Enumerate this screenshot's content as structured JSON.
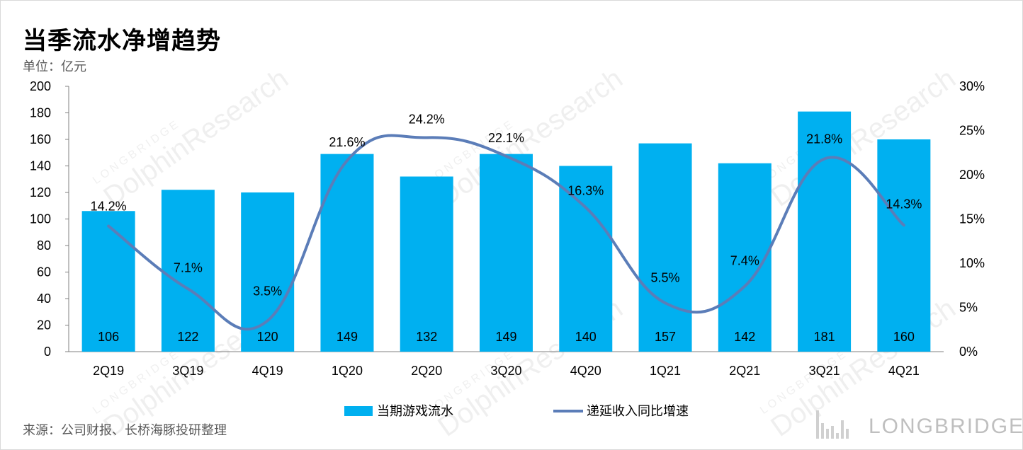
{
  "title": "当季流水净增趋势",
  "unit_label": "单位：亿元",
  "source": "来源：公司财报、长桥海豚投研整理",
  "watermark": {
    "brand": "LONGBRIDGE",
    "text": "DolphinResearch"
  },
  "colors": {
    "bar": "#00b0f0",
    "line": "#5b7db8",
    "axis": "#808080"
  },
  "chart_data": {
    "type": "bar",
    "categories": [
      "2Q19",
      "3Q19",
      "4Q19",
      "1Q20",
      "2Q20",
      "3Q20",
      "4Q20",
      "1Q21",
      "2Q21",
      "3Q21",
      "4Q21"
    ],
    "series": [
      {
        "name": "当期游戏流水",
        "type": "bar",
        "axis": "left",
        "values": [
          106,
          122,
          120,
          149,
          132,
          149,
          140,
          157,
          142,
          181,
          160
        ],
        "labels": [
          "106",
          "122",
          "120",
          "149",
          "132",
          "149",
          "140",
          "157",
          "142",
          "181",
          "160"
        ]
      },
      {
        "name": "递延收入同比增速",
        "type": "line",
        "axis": "right",
        "smooth": true,
        "values": [
          14.2,
          7.1,
          3.5,
          21.6,
          24.2,
          22.1,
          16.3,
          5.5,
          7.4,
          21.8,
          14.3
        ],
        "labels": [
          "14.2%",
          "7.1%",
          "3.5%",
          "21.6%",
          "24.2%",
          "22.1%",
          "16.3%",
          "5.5%",
          "7.4%",
          "21.8%",
          "14.3%"
        ]
      }
    ],
    "y_left": {
      "min": 0,
      "max": 200,
      "ticks": [
        "0",
        "20",
        "40",
        "60",
        "80",
        "100",
        "120",
        "140",
        "160",
        "180",
        "200"
      ]
    },
    "y_right": {
      "min": 0,
      "max": 30,
      "ticks": [
        "0%",
        "5%",
        "10%",
        "15%",
        "20%",
        "25%",
        "30%"
      ]
    },
    "legend_position": "bottom",
    "grid": false
  }
}
